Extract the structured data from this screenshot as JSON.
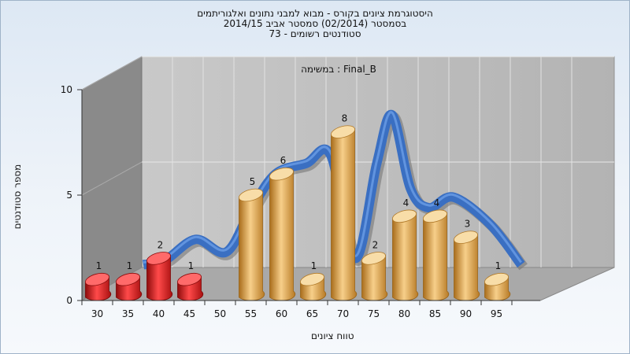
{
  "chart_data": {
    "type": "bar",
    "title_lines": [
      "היסטוגרמת ציונים בקורס - מבוא למבני נתונים ואלגוריתמים",
      "בסמסטר  (02/2014)  סמסטר אביב 2014/15",
      "סטודנטים רשומים - 73"
    ],
    "inner_label": "במשימה : Final_B",
    "xlabel": "טווח ציונים",
    "ylabel": "מספר סטודנטים",
    "x_ticks": [
      "30",
      "35",
      "40",
      "45",
      "50",
      "55",
      "60",
      "65",
      "70",
      "75",
      "80",
      "85",
      "90",
      "95"
    ],
    "y_ticks": [
      "0",
      "5",
      "10"
    ],
    "ylim": [
      0,
      10
    ],
    "grid": true,
    "bars": [
      {
        "bin": "30",
        "value": 1,
        "color": "#dd1a1a"
      },
      {
        "bin": "35",
        "value": 1,
        "color": "#dd1a1a"
      },
      {
        "bin": "40",
        "value": 2,
        "color": "#dd1a1a"
      },
      {
        "bin": "45",
        "value": 1,
        "color": "#dd1a1a"
      },
      {
        "bin": "55",
        "value": 5,
        "color": "#e2a44c"
      },
      {
        "bin": "60",
        "value": 6,
        "color": "#e2a44c"
      },
      {
        "bin": "65",
        "value": 1,
        "color": "#e2a44c"
      },
      {
        "bin": "70",
        "value": 8,
        "color": "#e2a44c"
      },
      {
        "bin": "75",
        "value": 2,
        "color": "#e2a44c"
      },
      {
        "bin": "80",
        "value": 4,
        "color": "#e2a44c"
      },
      {
        "bin": "85",
        "value": 4,
        "color": "#e2a44c"
      },
      {
        "bin": "90",
        "value": 3,
        "color": "#e2a44c"
      },
      {
        "bin": "95",
        "value": 1,
        "color": "#e2a44c"
      }
    ],
    "curve_color": "#3a6fc2",
    "curve": [
      {
        "x": 37.5,
        "y": 1.7
      },
      {
        "x": 41,
        "y": 1.9
      },
      {
        "x": 46,
        "y": 2.9
      },
      {
        "x": 51,
        "y": 2.3
      },
      {
        "x": 55,
        "y": 4.3
      },
      {
        "x": 59,
        "y": 6.0
      },
      {
        "x": 64,
        "y": 6.5
      },
      {
        "x": 68,
        "y": 6.9
      },
      {
        "x": 72,
        "y": 2.0
      },
      {
        "x": 75.5,
        "y": 6.5
      },
      {
        "x": 78,
        "y": 8.8
      },
      {
        "x": 81,
        "y": 5.3
      },
      {
        "x": 84,
        "y": 4.4
      },
      {
        "x": 88,
        "y": 4.9
      },
      {
        "x": 94,
        "y": 3.6
      },
      {
        "x": 99,
        "y": 1.7
      }
    ]
  }
}
